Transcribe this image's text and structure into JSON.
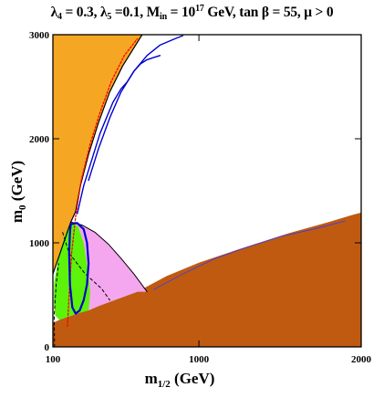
{
  "chart_data": {
    "type": "area",
    "title": {
      "lam4": "λ",
      "lam4_sub": "4",
      "lam4_val": " = 0.3, ",
      "lam5": "λ",
      "lam5_sub": "5",
      "lam5_val": " =0.1, M",
      "min_sub": "in",
      "mid": " = 10",
      "exp": "17",
      "tail": " GeV, tan β = 55,  μ > 0"
    },
    "xlabel": {
      "base": "m",
      "sub": "1/2",
      "unit": " (GeV)"
    },
    "ylabel": {
      "base": "m",
      "sub": "0",
      "unit": " (GeV)"
    },
    "xlim": [
      100,
      2000
    ],
    "ylim": [
      0,
      3000
    ],
    "x_ticks": [
      {
        "value": 100,
        "label": "100"
      },
      {
        "value": 1000,
        "label": "1000"
      },
      {
        "value": 2000,
        "label": "2000"
      }
    ],
    "y_ticks": [
      {
        "value": 0,
        "label": "0"
      },
      {
        "value": 1000,
        "label": "1000"
      },
      {
        "value": 2000,
        "label": "2000"
      },
      {
        "value": 3000,
        "label": "3000"
      }
    ],
    "grid": false,
    "legend": "none",
    "regions": [
      {
        "id": "orange-region",
        "color": "#f5a623",
        "points": [
          [
            100,
            1350
          ],
          [
            100,
            3000
          ],
          [
            650,
            3000
          ],
          [
            530,
            2700
          ],
          [
            450,
            2450
          ],
          [
            380,
            2150
          ],
          [
            320,
            1850
          ],
          [
            270,
            1550
          ],
          [
            240,
            1300
          ],
          [
            210,
            1200
          ],
          [
            100,
            700
          ]
        ]
      },
      {
        "id": "brown-region",
        "color": "#c05a10",
        "points": [
          [
            100,
            0
          ],
          [
            2000,
            0
          ],
          [
            2000,
            1290
          ],
          [
            1950,
            1270
          ],
          [
            1800,
            1200
          ],
          [
            1550,
            1090
          ],
          [
            1250,
            940
          ],
          [
            1000,
            810
          ],
          [
            800,
            680
          ],
          [
            620,
            530
          ],
          [
            480,
            450
          ],
          [
            250,
            320
          ],
          [
            140,
            260
          ],
          [
            100,
            230
          ]
        ]
      },
      {
        "id": "pink-region",
        "color": "#f4a6ee",
        "points": [
          [
            210,
            1200
          ],
          [
            280,
            1170
          ],
          [
            360,
            1100
          ],
          [
            440,
            990
          ],
          [
            520,
            850
          ],
          [
            600,
            700
          ],
          [
            680,
            530
          ],
          [
            620,
            530
          ],
          [
            480,
            450
          ],
          [
            380,
            390
          ],
          [
            320,
            350
          ],
          [
            290,
            1000
          ],
          [
            255,
            1160
          ]
        ]
      },
      {
        "id": "green-region",
        "color": "#5cf20a",
        "points": [
          [
            210,
            1200
          ],
          [
            255,
            1160
          ],
          [
            290,
            1000
          ],
          [
            315,
            750
          ],
          [
            330,
            520
          ],
          [
            320,
            350
          ],
          [
            250,
            320
          ],
          [
            140,
            260
          ],
          [
            115,
            300
          ],
          [
            105,
            430
          ],
          [
            108,
            620
          ],
          [
            140,
            900
          ],
          [
            180,
            1100
          ]
        ]
      }
    ],
    "lines": [
      {
        "id": "black-boundary",
        "color": "#000000",
        "width": 1.2,
        "dash": "",
        "points": [
          [
            100,
            700
          ],
          [
            210,
            1200
          ],
          [
            240,
            1300
          ],
          [
            270,
            1550
          ],
          [
            320,
            1850
          ],
          [
            380,
            2150
          ],
          [
            450,
            2450
          ],
          [
            530,
            2700
          ],
          [
            650,
            3000
          ]
        ]
      },
      {
        "id": "black-upper",
        "color": "#000000",
        "width": 1.0,
        "dash": "",
        "points": [
          [
            210,
            1200
          ],
          [
            280,
            1170
          ],
          [
            360,
            1100
          ],
          [
            440,
            990
          ],
          [
            520,
            850
          ],
          [
            600,
            700
          ],
          [
            680,
            530
          ]
        ]
      },
      {
        "id": "black-dashed-1",
        "color": "#000000",
        "width": 1.0,
        "dash": "3,3",
        "points": [
          [
            160,
            1100
          ],
          [
            200,
            900
          ],
          [
            300,
            700
          ],
          [
            400,
            560
          ],
          [
            450,
            450
          ]
        ]
      },
      {
        "id": "black-dashed-2",
        "color": "#000000",
        "width": 1.0,
        "dash": "3,3",
        "points": [
          [
            110,
            0
          ],
          [
            108,
            300
          ],
          [
            120,
            600
          ],
          [
            135,
            800
          ]
        ]
      },
      {
        "id": "red-dotted",
        "color": "#ff0000",
        "width": 1.3,
        "dash": "2,2",
        "points": [
          [
            190,
            200
          ],
          [
            200,
            500
          ],
          [
            215,
            900
          ],
          [
            240,
            1250
          ],
          [
            275,
            1600
          ],
          [
            330,
            1950
          ],
          [
            390,
            2250
          ],
          [
            460,
            2550
          ],
          [
            540,
            2800
          ],
          [
            620,
            2960
          ]
        ]
      },
      {
        "id": "blue-loop",
        "color": "#0000cc",
        "width": 2.2,
        "dash": "",
        "points": [
          [
            210,
            1180
          ],
          [
            250,
            1190
          ],
          [
            290,
            1130
          ],
          [
            310,
            1000
          ],
          [
            320,
            800
          ],
          [
            310,
            600
          ],
          [
            290,
            450
          ],
          [
            265,
            350
          ],
          [
            240,
            320
          ],
          [
            220,
            380
          ],
          [
            205,
            600
          ],
          [
            200,
            900
          ],
          [
            205,
            1100
          ],
          [
            210,
            1180
          ]
        ]
      },
      {
        "id": "blue-band-lower",
        "color": "#0000cc",
        "width": 1.4,
        "dash": "",
        "points": [
          [
            250,
            1280
          ],
          [
            290,
            1550
          ],
          [
            340,
            1800
          ],
          [
            390,
            2050
          ],
          [
            430,
            2200
          ],
          [
            470,
            2350
          ],
          [
            520,
            2480
          ],
          [
            560,
            2550
          ],
          [
            600,
            2650
          ],
          [
            640,
            2720
          ],
          [
            680,
            2760
          ],
          [
            720,
            2780
          ],
          [
            760,
            2800
          ]
        ]
      },
      {
        "id": "blue-band-upper",
        "color": "#0000cc",
        "width": 1.4,
        "dash": "",
        "points": [
          [
            320,
            1600
          ],
          [
            380,
            1900
          ],
          [
            450,
            2200
          ],
          [
            520,
            2450
          ],
          [
            600,
            2650
          ],
          [
            680,
            2800
          ],
          [
            760,
            2900
          ],
          [
            850,
            2960
          ],
          [
            900,
            2990
          ]
        ]
      },
      {
        "id": "blue-thin-brown-edge",
        "color": "#2a3cff",
        "width": 0.8,
        "dash": "",
        "points": [
          [
            720,
            550
          ],
          [
            900,
            700
          ],
          [
            1100,
            850
          ],
          [
            1300,
            960
          ],
          [
            1500,
            1060
          ],
          [
            1700,
            1130
          ],
          [
            1900,
            1210
          ]
        ]
      }
    ]
  }
}
